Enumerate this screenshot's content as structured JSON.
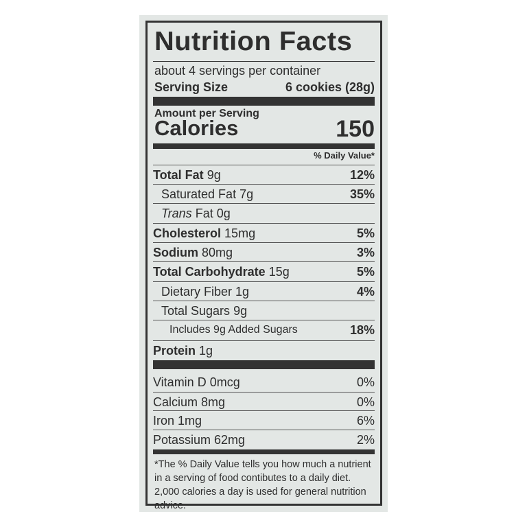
{
  "title": "Nutrition Facts",
  "servings_per_container": "about 4 servings per container",
  "serving_size_label": "Serving Size",
  "serving_size_value": "6 cookies (28g)",
  "amount_per_serving": "Amount per Serving",
  "calories_label": "Calories",
  "calories_value": "150",
  "daily_value_header": "% Daily Value*",
  "nutrients": [
    {
      "name": "Total Fat",
      "amount": "9g",
      "dv": "12%"
    },
    {
      "name": "Saturated Fat",
      "amount": "7g",
      "dv": "35%"
    },
    {
      "name": "Trans",
      "name_rest": "Fat 0g",
      "dv": ""
    },
    {
      "name": "Cholesterol",
      "amount": "15mg",
      "dv": "5%"
    },
    {
      "name": "Sodium",
      "amount": "80mg",
      "dv": "3%"
    },
    {
      "name": "Total Carbohydrate",
      "amount": "15g",
      "dv": "5%"
    },
    {
      "name": "Dietary Fiber",
      "amount": "1g",
      "dv": "4%"
    },
    {
      "name": "Total Sugars",
      "amount": "9g",
      "dv": ""
    },
    {
      "name": "Includes 9g Added Sugars",
      "dv": "18%"
    },
    {
      "name": "Protein",
      "amount": "1g",
      "dv": ""
    }
  ],
  "vitamins": [
    {
      "name": "Vitamin D 0mcg",
      "dv": "0%"
    },
    {
      "name": "Calcium 8mg",
      "dv": "0%"
    },
    {
      "name": "Iron 1mg",
      "dv": "6%"
    },
    {
      "name": "Potassium 62mg",
      "dv": "2%"
    }
  ],
  "footnote": "*The % Daily Value tells you how much a nutrient in a serving of food contibutes to a daily diet. 2,000 calories a day is used for general nutrition advice."
}
